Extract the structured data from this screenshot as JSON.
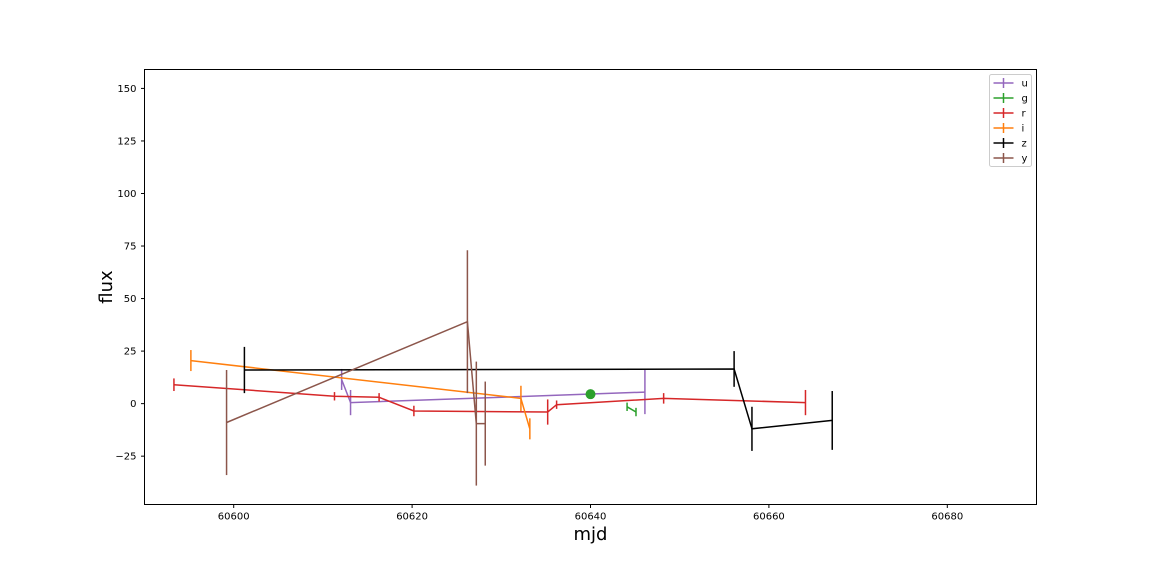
{
  "chart_data": {
    "type": "line",
    "xlabel": "mjd",
    "ylabel": "flux",
    "xlim": [
      60590,
      60690
    ],
    "ylim": [
      -48,
      159
    ],
    "xticks": [
      60600,
      60620,
      60640,
      60660,
      60680
    ],
    "yticks": [
      -25,
      0,
      25,
      50,
      75,
      100,
      125,
      150
    ],
    "grid": false,
    "legend": {
      "placement": "top-right",
      "entries": [
        "u",
        "g",
        "r",
        "i",
        "z",
        "y"
      ]
    },
    "series": [
      {
        "name": "u",
        "color": "#9467bd",
        "points": [
          {
            "x": 60612.1,
            "y": 11.5,
            "err": 5
          },
          {
            "x": 60613.1,
            "y": 0.5,
            "err": 6
          },
          {
            "x": 60646.1,
            "y": 5.5,
            "err": 10.5
          }
        ]
      },
      {
        "name": "g",
        "color": "#2ca02c",
        "points": [
          {
            "x": 60644.1,
            "y": -1.5,
            "err": 2
          },
          {
            "x": 60645.1,
            "y": -4.0,
            "err": 2
          }
        ]
      },
      {
        "name": "r",
        "color": "#d62728",
        "points": [
          {
            "x": 60593.3,
            "y": 9.0,
            "err": 3
          },
          {
            "x": 60611.3,
            "y": 3.5,
            "err": 2
          },
          {
            "x": 60616.3,
            "y": 3.0,
            "err": 2
          },
          {
            "x": 60620.2,
            "y": -3.5,
            "err": 2.5
          },
          {
            "x": 60635.2,
            "y": -4.0,
            "err": 6
          },
          {
            "x": 60636.2,
            "y": -0.5,
            "err": 2
          },
          {
            "x": 60648.2,
            "y": 2.5,
            "err": 2.5
          },
          {
            "x": 60664.1,
            "y": 0.5,
            "err": 6
          }
        ]
      },
      {
        "name": "i",
        "color": "#ff7f0e",
        "points": [
          {
            "x": 60595.2,
            "y": 20.5,
            "err": 5
          },
          {
            "x": 60632.2,
            "y": 2.5,
            "err": 6
          },
          {
            "x": 60633.2,
            "y": -12.0,
            "err": 5
          }
        ]
      },
      {
        "name": "z",
        "color": "#000000",
        "points": [
          {
            "x": 60601.2,
            "y": 16.0,
            "err": 11
          },
          {
            "x": 60656.1,
            "y": 16.5,
            "err": 8.5
          },
          {
            "x": 60658.1,
            "y": -12.0,
            "err": 10.5
          },
          {
            "x": 60667.1,
            "y": -8.0,
            "err": 14
          }
        ]
      },
      {
        "name": "y",
        "color": "#8c564b",
        "points": [
          {
            "x": 60599.2,
            "y": -9.0,
            "err": 25
          },
          {
            "x": 60626.2,
            "y": 39.0,
            "err": 34
          },
          {
            "x": 60627.2,
            "y": -9.5,
            "err": 29.5
          },
          {
            "x": 60628.2,
            "y": -9.5,
            "err": 20
          }
        ]
      }
    ],
    "marker": {
      "x": 60640.0,
      "y": 4.5,
      "color": "#2ca02c"
    }
  }
}
